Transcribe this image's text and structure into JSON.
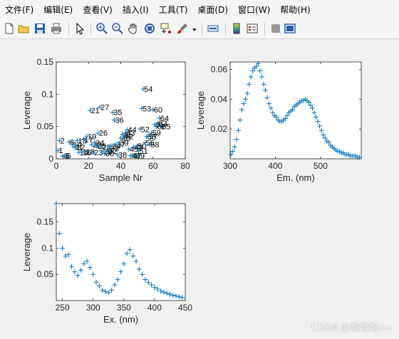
{
  "menu": [
    "文件(F)",
    "编辑(E)",
    "查看(V)",
    "插入(I)",
    "工具(T)",
    "桌面(D)",
    "窗口(W)",
    "帮助(H)"
  ],
  "toolbar_icons": [
    "new-file-icon",
    "open-folder-icon",
    "save-icon",
    "print-icon",
    "pointer-icon",
    "zoom-in-icon",
    "zoom-out-icon",
    "pan-hand-icon",
    "rotate-3d-icon",
    "data-cursor-icon",
    "brush-icon",
    "link-plot-icon",
    "colorbar-icon",
    "legend-icon",
    "hide-plot-tools-icon",
    "show-plot-tools-icon"
  ],
  "colors": {
    "marker": "#0072bd",
    "axis": "#262626",
    "background": "#f0f0f0",
    "plot_bg": "#ffffff"
  },
  "watermark": "CSDN @炮炮炮~~",
  "chart_data": [
    {
      "type": "scatter",
      "xlabel": "Sample Nr",
      "ylabel": "Leverage",
      "xlim": [
        0,
        80
      ],
      "ylim": [
        0,
        0.15
      ],
      "xticks": [
        0,
        20,
        40,
        60,
        80
      ],
      "yticks": [
        0,
        0.05,
        0.1,
        0.15
      ],
      "yticklabels": [
        "0",
        "0.05",
        "0.1",
        "0.15"
      ],
      "points": [
        {
          "x": 1,
          "y": 0.013,
          "label": "1"
        },
        {
          "x": 2,
          "y": 0.028,
          "label": "2"
        },
        {
          "x": 4,
          "y": 0.004,
          "label": "4"
        },
        {
          "x": 5,
          "y": 0.005,
          "label": "5"
        },
        {
          "x": 6,
          "y": 0.005,
          "label": "6"
        },
        {
          "x": 8,
          "y": 0.026,
          "label": "8"
        },
        {
          "x": 10,
          "y": 0.022,
          "label": "10"
        },
        {
          "x": 11,
          "y": 0.018,
          "label": "11"
        },
        {
          "x": 12,
          "y": 0.018,
          "label": "12"
        },
        {
          "x": 13,
          "y": 0.028,
          "label": "13"
        },
        {
          "x": 14,
          "y": 0.01,
          "label": "14"
        },
        {
          "x": 16,
          "y": 0.01,
          "label": "16"
        },
        {
          "x": 17,
          "y": 0.03,
          "label": "17"
        },
        {
          "x": 18,
          "y": 0.011,
          "label": "18"
        },
        {
          "x": 19,
          "y": 0.035,
          "label": "19"
        },
        {
          "x": 21,
          "y": 0.075,
          "label": "21"
        },
        {
          "x": 22,
          "y": 0.022,
          "label": "22"
        },
        {
          "x": 23,
          "y": 0.01,
          "label": "23"
        },
        {
          "x": 24,
          "y": 0.025,
          "label": "24"
        },
        {
          "x": 25,
          "y": 0.02,
          "label": "25"
        },
        {
          "x": 26,
          "y": 0.04,
          "label": "26"
        },
        {
          "x": 27,
          "y": 0.08,
          "label": "27"
        },
        {
          "x": 28,
          "y": 0.018,
          "label": "28"
        },
        {
          "x": 29,
          "y": 0.011,
          "label": "29"
        },
        {
          "x": 30,
          "y": 0.008,
          "label": "30"
        },
        {
          "x": 32,
          "y": 0.012,
          "label": "32"
        },
        {
          "x": 33,
          "y": 0.016,
          "label": "33"
        },
        {
          "x": 34,
          "y": 0.02,
          "label": "34"
        },
        {
          "x": 35,
          "y": 0.072,
          "label": "35"
        },
        {
          "x": 36,
          "y": 0.06,
          "label": "36"
        },
        {
          "x": 37,
          "y": 0.022,
          "label": "37"
        },
        {
          "x": 38,
          "y": 0.006,
          "label": "38"
        },
        {
          "x": 39,
          "y": 0.025,
          "label": "39"
        },
        {
          "x": 40,
          "y": 0.032,
          "label": "40"
        },
        {
          "x": 41,
          "y": 0.038,
          "label": "41"
        },
        {
          "x": 42,
          "y": 0.035,
          "label": "42"
        },
        {
          "x": 43,
          "y": 0.04,
          "label": "43"
        },
        {
          "x": 44,
          "y": 0.045,
          "label": "44"
        },
        {
          "x": 45,
          "y": 0.015,
          "label": "45"
        },
        {
          "x": 46,
          "y": 0.005,
          "label": "46"
        },
        {
          "x": 47,
          "y": 0.005,
          "label": "47"
        },
        {
          "x": 48,
          "y": 0.018,
          "label": "48"
        },
        {
          "x": 49,
          "y": 0.005,
          "label": "49"
        },
        {
          "x": 50,
          "y": 0.02,
          "label": "50"
        },
        {
          "x": 51,
          "y": 0.012,
          "label": "51"
        },
        {
          "x": 52,
          "y": 0.046,
          "label": "52"
        },
        {
          "x": 53,
          "y": 0.078,
          "label": "53"
        },
        {
          "x": 54,
          "y": 0.108,
          "label": "54"
        },
        {
          "x": 55,
          "y": 0.025,
          "label": "55"
        },
        {
          "x": 56,
          "y": 0.034,
          "label": "56"
        },
        {
          "x": 57,
          "y": 0.035,
          "label": "57"
        },
        {
          "x": 58,
          "y": 0.022,
          "label": "58"
        },
        {
          "x": 59,
          "y": 0.04,
          "label": "59"
        },
        {
          "x": 60,
          "y": 0.076,
          "label": "60"
        },
        {
          "x": 61,
          "y": 0.053,
          "label": "61"
        },
        {
          "x": 62,
          "y": 0.05,
          "label": "62"
        },
        {
          "x": 63,
          "y": 0.055,
          "label": "63"
        },
        {
          "x": 64,
          "y": 0.063,
          "label": "64"
        },
        {
          "x": 65,
          "y": 0.05,
          "label": "65"
        }
      ]
    },
    {
      "type": "scatter",
      "xlabel": "Em. (nm)",
      "ylabel": "Leverage",
      "xlim": [
        300,
        590
      ],
      "ylim": [
        0,
        0.065
      ],
      "xticks": [
        300,
        400,
        500
      ],
      "yticks": [
        0.02,
        0.04,
        0.06
      ],
      "yticklabels": [
        "0.02",
        "0.04",
        "0.06"
      ],
      "x": [
        302,
        306,
        310,
        314,
        318,
        322,
        326,
        330,
        334,
        338,
        342,
        346,
        350,
        354,
        358,
        362,
        366,
        370,
        374,
        378,
        382,
        386,
        390,
        394,
        398,
        402,
        406,
        410,
        414,
        418,
        422,
        426,
        430,
        434,
        438,
        442,
        446,
        450,
        454,
        458,
        462,
        466,
        470,
        474,
        478,
        482,
        486,
        490,
        494,
        498,
        502,
        506,
        510,
        514,
        518,
        522,
        526,
        530,
        534,
        538,
        542,
        546,
        550,
        554,
        558,
        562,
        566,
        570,
        574,
        578,
        582,
        586
      ],
      "y": [
        0.003,
        0.005,
        0.008,
        0.013,
        0.019,
        0.026,
        0.033,
        0.037,
        0.04,
        0.044,
        0.05,
        0.055,
        0.059,
        0.061,
        0.062,
        0.064,
        0.059,
        0.055,
        0.05,
        0.046,
        0.041,
        0.037,
        0.034,
        0.031,
        0.029,
        0.028,
        0.026,
        0.025,
        0.025,
        0.026,
        0.027,
        0.029,
        0.031,
        0.032,
        0.033,
        0.035,
        0.036,
        0.037,
        0.038,
        0.039,
        0.039,
        0.04,
        0.039,
        0.038,
        0.036,
        0.034,
        0.031,
        0.028,
        0.025,
        0.022,
        0.019,
        0.016,
        0.014,
        0.012,
        0.011,
        0.009,
        0.008,
        0.007,
        0.006,
        0.005,
        0.005,
        0.004,
        0.004,
        0.003,
        0.003,
        0.003,
        0.002,
        0.002,
        0.002,
        0.002,
        0.001,
        0.001
      ]
    },
    {
      "type": "scatter",
      "xlabel": "Ex. (nm)",
      "ylabel": "Leverage",
      "xlim": [
        240,
        450
      ],
      "ylim": [
        0,
        0.185
      ],
      "xticks": [
        250,
        300,
        350,
        400,
        450
      ],
      "yticks": [
        0.05,
        0.1,
        0.15
      ],
      "yticklabels": [
        "0.05",
        "0.1",
        "0.15"
      ],
      "x": [
        240,
        245,
        250,
        255,
        260,
        265,
        270,
        275,
        280,
        285,
        290,
        295,
        300,
        305,
        310,
        315,
        320,
        325,
        330,
        335,
        340,
        345,
        350,
        355,
        360,
        365,
        370,
        375,
        380,
        385,
        390,
        395,
        400,
        405,
        410,
        415,
        420,
        425,
        430,
        435,
        440,
        445
      ],
      "y": [
        0.185,
        0.128,
        0.1,
        0.085,
        0.088,
        0.065,
        0.055,
        0.048,
        0.058,
        0.07,
        0.075,
        0.063,
        0.05,
        0.035,
        0.028,
        0.02,
        0.017,
        0.015,
        0.02,
        0.03,
        0.04,
        0.055,
        0.07,
        0.09,
        0.097,
        0.085,
        0.075,
        0.06,
        0.05,
        0.04,
        0.035,
        0.03,
        0.025,
        0.022,
        0.018,
        0.016,
        0.014,
        0.012,
        0.01,
        0.009,
        0.007,
        0.006
      ]
    }
  ]
}
